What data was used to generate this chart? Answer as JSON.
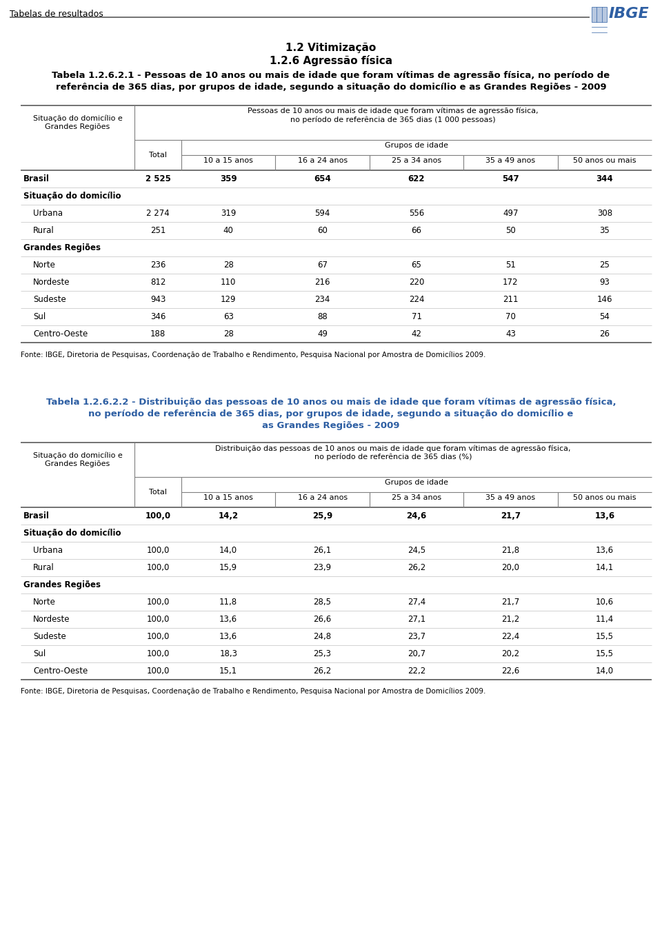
{
  "page_header": "Tabelas de resultados",
  "section_title1": "1.2 Vitimização",
  "section_title2": "1.2.6 Agressão física",
  "table1_title_line1": "Tabela 1.2.6.2.1 - Pessoas de 10 anos ou mais de idade que foram vítimas de agressão física, no período de",
  "table1_title_line2": "referência de 365 dias, por grupos de idade, segundo a situação do domicílio e as Grandes Regiões - 2009",
  "table1_header1_line1": "Pessoas de 10 anos ou mais de idade que foram vítimas de agressão física,",
  "table1_header1_line2": "no período de referência de 365 dias (1 000 pessoas)",
  "col_header_left": "Situação do domicílio e\nGrandes Regiões",
  "col_total": "Total",
  "col_ages": [
    "10 a 15 anos",
    "16 a 24 anos",
    "25 a 34 anos",
    "35 a 49 anos",
    "50 anos ou mais"
  ],
  "table1_rows": [
    {
      "label": "Brasil",
      "bold": true,
      "indent": 0,
      "values": [
        "2 525",
        "359",
        "654",
        "622",
        "547",
        "344"
      ]
    },
    {
      "label": "Situação do domicílio",
      "bold": true,
      "indent": 0,
      "values": null
    },
    {
      "label": "Urbana",
      "bold": false,
      "indent": 1,
      "values": [
        "2 274",
        "319",
        "594",
        "556",
        "497",
        "308"
      ]
    },
    {
      "label": "Rural",
      "bold": false,
      "indent": 1,
      "values": [
        "251",
        "40",
        "60",
        "66",
        "50",
        "35"
      ]
    },
    {
      "label": "Grandes Regiões",
      "bold": true,
      "indent": 0,
      "values": null
    },
    {
      "label": "Norte",
      "bold": false,
      "indent": 1,
      "values": [
        "236",
        "28",
        "67",
        "65",
        "51",
        "25"
      ]
    },
    {
      "label": "Nordeste",
      "bold": false,
      "indent": 1,
      "values": [
        "812",
        "110",
        "216",
        "220",
        "172",
        "93"
      ]
    },
    {
      "label": "Sudeste",
      "bold": false,
      "indent": 1,
      "values": [
        "943",
        "129",
        "234",
        "224",
        "211",
        "146"
      ]
    },
    {
      "label": "Sul",
      "bold": false,
      "indent": 1,
      "values": [
        "346",
        "63",
        "88",
        "71",
        "70",
        "54"
      ]
    },
    {
      "label": "Centro-Oeste",
      "bold": false,
      "indent": 1,
      "values": [
        "188",
        "28",
        "49",
        "42",
        "43",
        "26"
      ]
    }
  ],
  "table1_footnote": "Fonte: IBGE, Diretoria de Pesquisas, Coordenação de Trabalho e Rendimento, Pesquisa Nacional por Amostra de Domicílios 2009.",
  "table2_title_line1": "Tabela 1.2.6.2.2 - Distribuição das pessoas de 10 anos ou mais de idade que foram vítimas de agressão física,",
  "table2_title_line2": "no período de referência de 365 dias, por grupos de idade, segundo a situação do domicílio e",
  "table2_title_line3": "as Grandes Regiões - 2009",
  "table2_header1_line1": "Distribuição das pessoas de 10 anos ou mais de idade que foram vítimas de agressão física,",
  "table2_header1_line2": "no período de referência de 365 dias (%)",
  "table2_rows": [
    {
      "label": "Brasil",
      "bold": true,
      "indent": 0,
      "values": [
        "100,0",
        "14,2",
        "25,9",
        "24,6",
        "21,7",
        "13,6"
      ]
    },
    {
      "label": "Situação do domicílio",
      "bold": true,
      "indent": 0,
      "values": null
    },
    {
      "label": "Urbana",
      "bold": false,
      "indent": 1,
      "values": [
        "100,0",
        "14,0",
        "26,1",
        "24,5",
        "21,8",
        "13,6"
      ]
    },
    {
      "label": "Rural",
      "bold": false,
      "indent": 1,
      "values": [
        "100,0",
        "15,9",
        "23,9",
        "26,2",
        "20,0",
        "14,1"
      ]
    },
    {
      "label": "Grandes Regiões",
      "bold": true,
      "indent": 0,
      "values": null
    },
    {
      "label": "Norte",
      "bold": false,
      "indent": 1,
      "values": [
        "100,0",
        "11,8",
        "28,5",
        "27,4",
        "21,7",
        "10,6"
      ]
    },
    {
      "label": "Nordeste",
      "bold": false,
      "indent": 1,
      "values": [
        "100,0",
        "13,6",
        "26,6",
        "27,1",
        "21,2",
        "11,4"
      ]
    },
    {
      "label": "Sudeste",
      "bold": false,
      "indent": 1,
      "values": [
        "100,0",
        "13,6",
        "24,8",
        "23,7",
        "22,4",
        "15,5"
      ]
    },
    {
      "label": "Sul",
      "bold": false,
      "indent": 1,
      "values": [
        "100,0",
        "18,3",
        "25,3",
        "20,7",
        "20,2",
        "15,5"
      ]
    },
    {
      "label": "Centro-Oeste",
      "bold": false,
      "indent": 1,
      "values": [
        "100,0",
        "15,1",
        "26,2",
        "22,2",
        "22,6",
        "14,0"
      ]
    }
  ],
  "table2_footnote": "Fonte: IBGE, Diretoria de Pesquisas, Coordenação de Trabalho e Rendimento, Pesquisa Nacional por Amostra de Domicílios 2009.",
  "bg_color": "#ffffff",
  "ibge_color": "#2e5fa3",
  "table2_title_color": "#2e5fa3"
}
